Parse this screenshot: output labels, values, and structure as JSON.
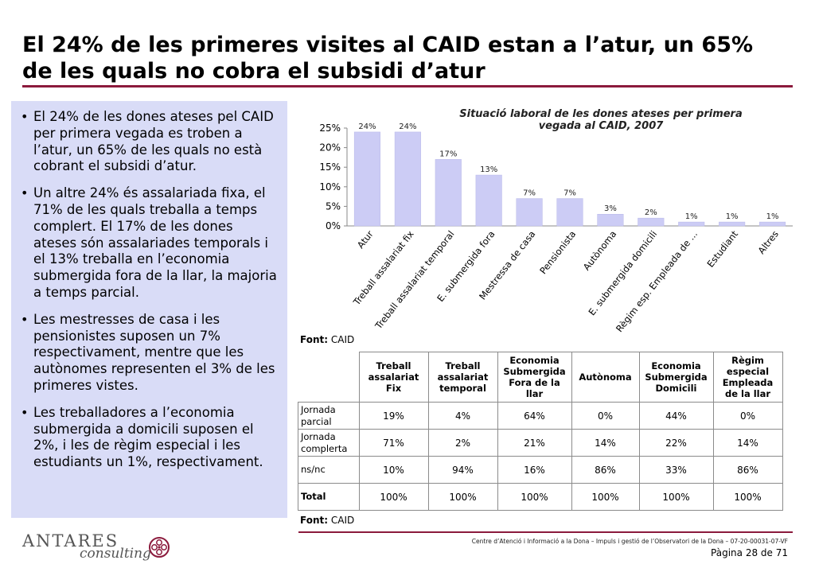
{
  "title": "El 24% de les primeres visites al CAID estan a l’atur, un 65% de les quals no cobra el subsidi d’atur",
  "bullets": [
    "El 24% de les dones ateses pel CAID per primera vegada es troben a l’atur, un 65% de les quals no està cobrant el subsidi d’atur.",
    "Un altre 24% és assalariada fixa, el 71% de les quals treballa a temps complert. El 17% de les dones ateses són assalariades temporals i el 13% treballa en l’economia submergida fora de la llar, la majoria a temps parcial.",
    "Les mestresses de casa i les pensionistes suposen un 7% respectivament, mentre que les autònomes representen el 3% de les primeres vistes.",
    "Les treballadores a l’economia submergida a domicili suposen el 2%, i les de règim especial i les estudiants un 1%, respectivament."
  ],
  "chart_data": {
    "type": "bar",
    "title": "Situació laboral de les dones ateses per primera vegada al CAID, 2007",
    "categories": [
      "Atur",
      "Treball assalariat fix",
      "Treball assalariat temporal",
      "E. submergida fora",
      "Mestressa de casa",
      "Pensionista",
      "Autònoma",
      "E. submergida domicili",
      "Règim esp. Empleada de ...",
      "Estudiant",
      "Altres"
    ],
    "values": [
      24,
      24,
      17,
      13,
      7,
      7,
      3,
      2,
      1,
      1,
      1
    ],
    "data_labels": [
      "24%",
      "24%",
      "17%",
      "13%",
      "7%",
      "7%",
      "3%",
      "2%",
      "1%",
      "1%",
      "1%"
    ],
    "y_ticks": [
      "0%",
      "5%",
      "10%",
      "15%",
      "20%",
      "25%"
    ],
    "ylim": [
      0,
      25
    ],
    "bar_color": "#ccccf5",
    "grid": false,
    "legend": "none"
  },
  "source_label": "Font:",
  "source_value": "CAID",
  "table": {
    "headers": [
      "",
      "Treball assalariat Fix",
      "Treball assalariat temporal",
      "Economia Submergida Fora de la llar",
      "Autònoma",
      "Economia Submergida Domicili",
      "Règim especial Empleada de la llar"
    ],
    "rows": [
      {
        "label": "Jornada parcial",
        "cells": [
          "19%",
          "4%",
          "64%",
          "0%",
          "44%",
          "0%"
        ]
      },
      {
        "label": "Jornada complerta",
        "cells": [
          "71%",
          "2%",
          "21%",
          "14%",
          "22%",
          "14%"
        ]
      },
      {
        "label": "ns/nc",
        "cells": [
          "10%",
          "94%",
          "16%",
          "86%",
          "33%",
          "86%"
        ]
      },
      {
        "label": "Total",
        "cells": [
          "100%",
          "100%",
          "100%",
          "100%",
          "100%",
          "100%"
        ]
      }
    ]
  },
  "footer": {
    "logo_main": "ANTARES",
    "logo_sub": "consulting",
    "text": "Centre d’Atenció i Informació a la Dona – Impuls i gestió de l’Observatori de la Dona – 07-20-00031-07-VF",
    "page": "Pàgina 28 de 71"
  },
  "colors": {
    "accent": "#8b1a3c",
    "panel": "#d9dcf7",
    "bar": "#ccccf5"
  }
}
